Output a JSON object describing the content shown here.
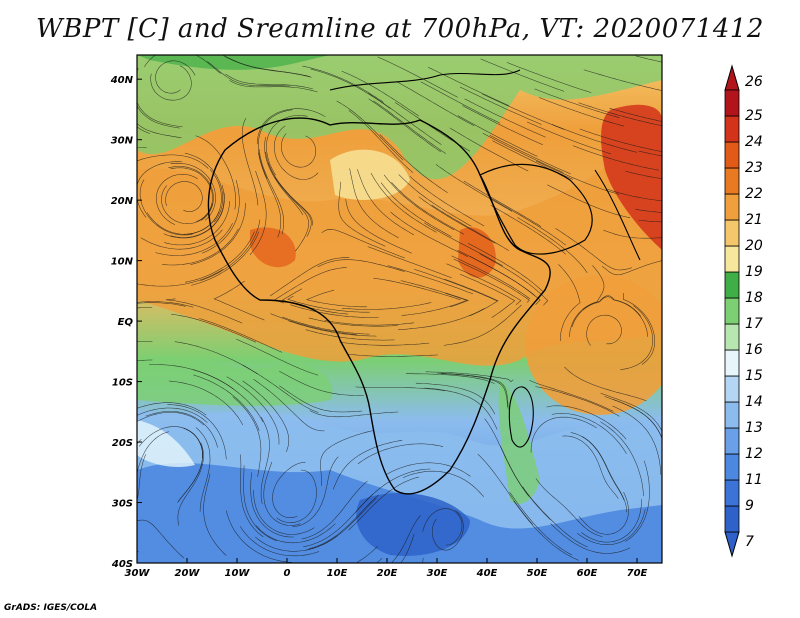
{
  "title": "WBPT [C] and Sreamline at 700hPa, VT: 2020071412",
  "credit": "GrADS: IGES/COLA",
  "map": {
    "lon_labels": [
      "30W",
      "20W",
      "10W",
      "0",
      "10E",
      "20E",
      "30E",
      "40E",
      "50E",
      "60E",
      "70E"
    ],
    "lat_labels": [
      "40N",
      "30N",
      "20N",
      "10N",
      "EQ",
      "10S",
      "20S",
      "30S",
      "40S"
    ],
    "lon_range": [
      -30,
      75
    ],
    "lat_range": [
      -40,
      44
    ]
  },
  "colorbar": {
    "levels": [
      "7",
      "9",
      "11",
      "12",
      "13",
      "14",
      "15",
      "16",
      "17",
      "18",
      "19",
      "20",
      "21",
      "22",
      "23",
      "24",
      "25",
      "26"
    ],
    "colors": [
      "#2e62c8",
      "#3b74d6",
      "#4d88e0",
      "#6aa0e8",
      "#8cbcee",
      "#b4d6f4",
      "#e6f6fb",
      "#b8e6b0",
      "#7ccf72",
      "#3fae46",
      "#f7e79c",
      "#f4c76c",
      "#ef9f3b",
      "#e97a22",
      "#e25a18",
      "#d2331a",
      "#b2141b"
    ]
  },
  "regions": [
    {
      "name": "africa",
      "label": ""
    }
  ]
}
